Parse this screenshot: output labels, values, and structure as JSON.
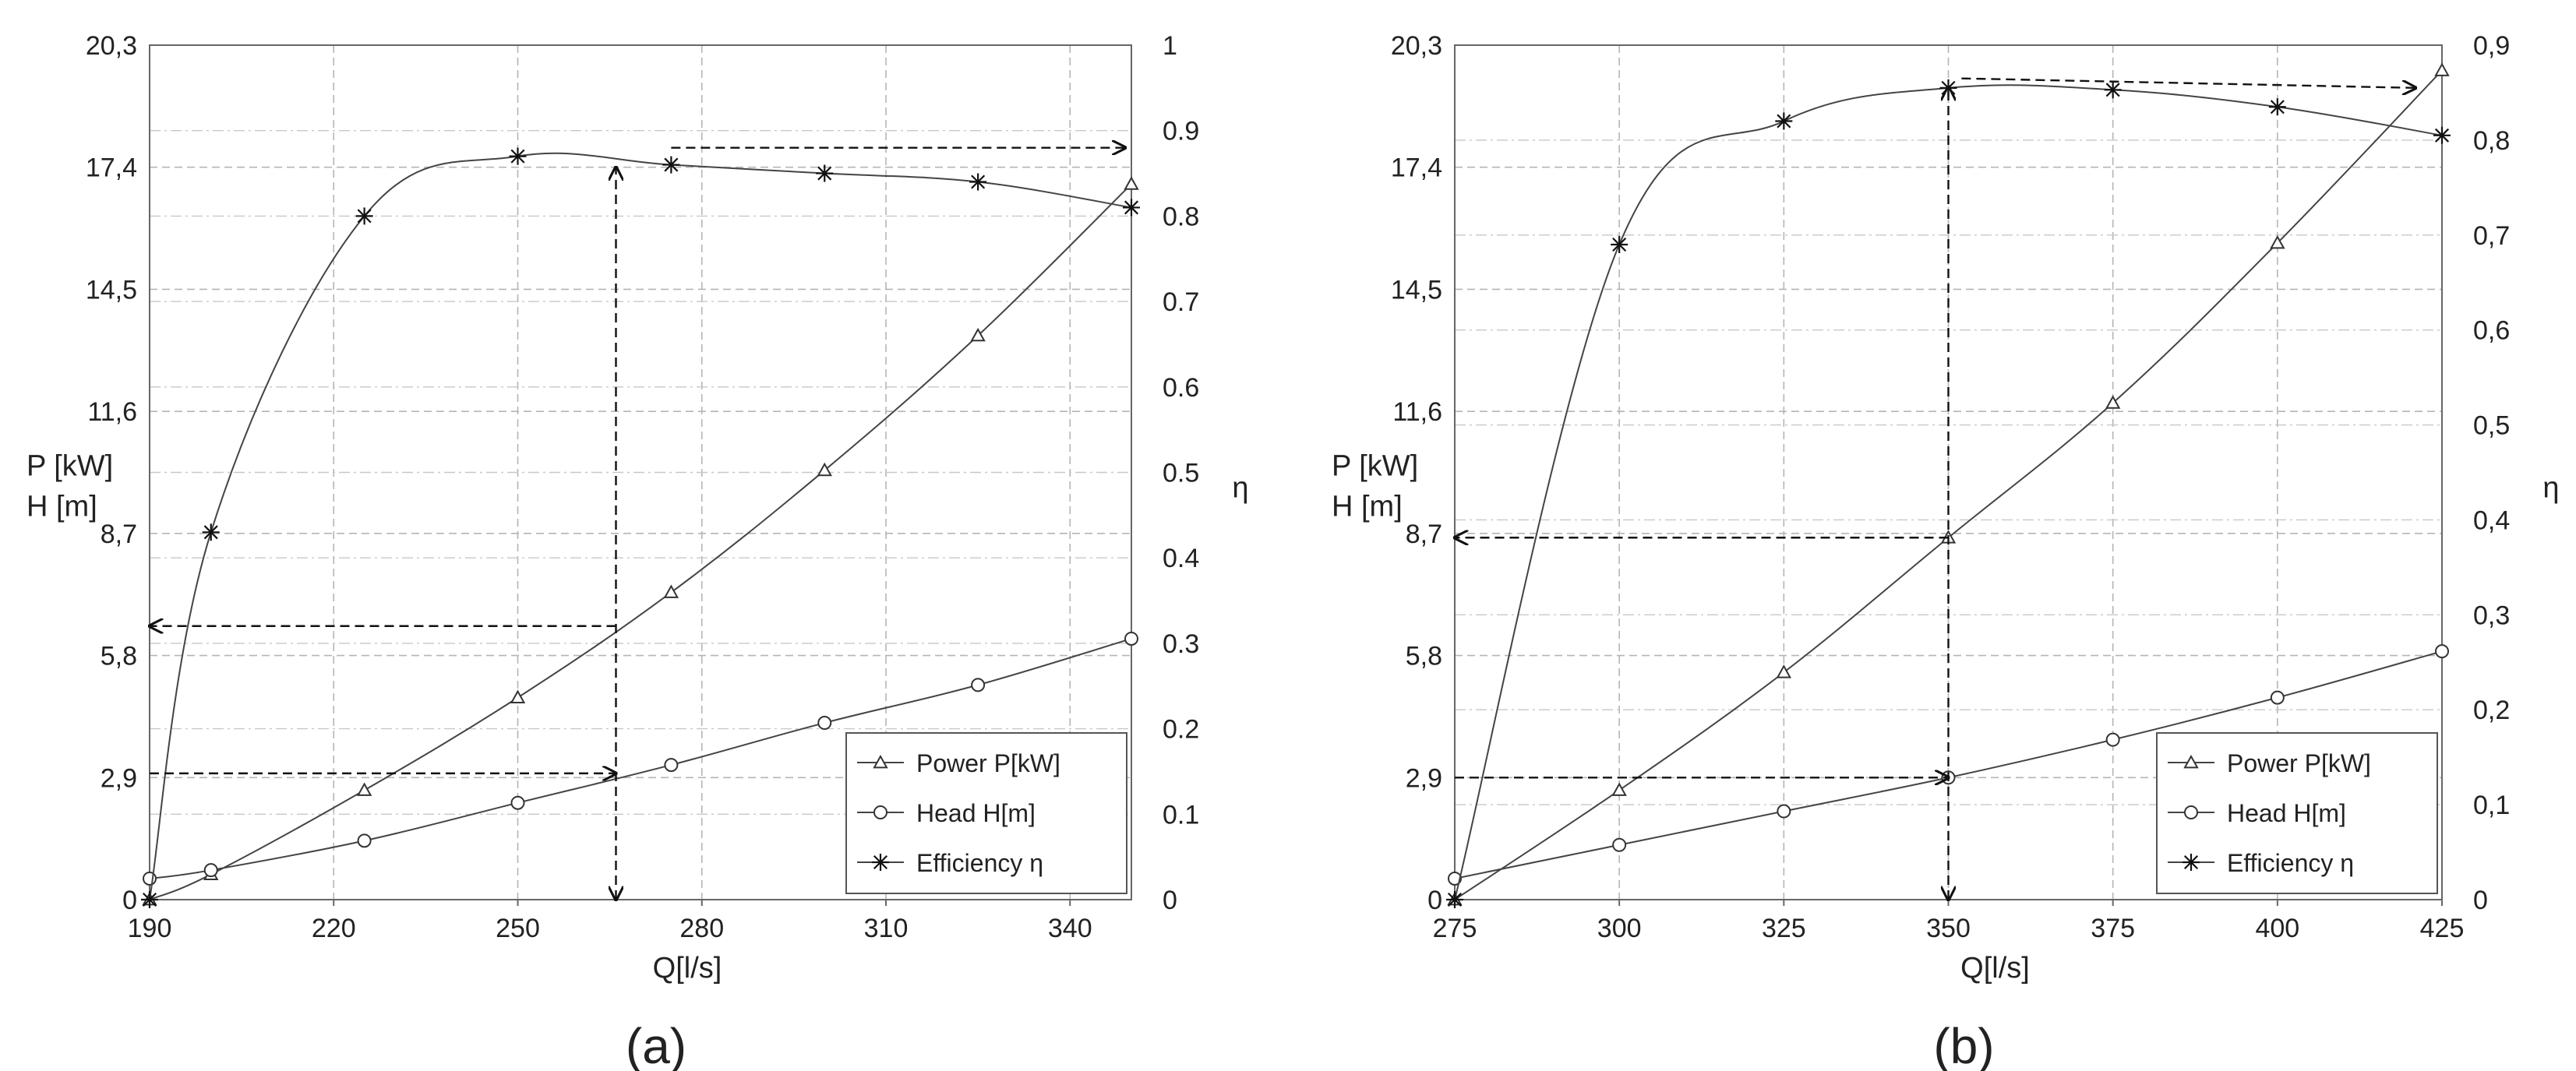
{
  "chart_data": [
    {
      "type": "line",
      "panel_label": "(a)",
      "xlabel": "Q[l/s]",
      "ylabel_lines": [
        "P [kW]",
        "H [m]"
      ],
      "y2label": "η",
      "xlim": [
        190,
        350
      ],
      "ylim": [
        0,
        20.3
      ],
      "y2lim": [
        0,
        1
      ],
      "xticks": [
        190,
        220,
        250,
        280,
        310,
        340
      ],
      "xtick_labels": [
        "190",
        "220",
        "250",
        "280",
        "310",
        "340"
      ],
      "yticks": [
        0,
        2.9,
        5.8,
        8.7,
        11.6,
        14.5,
        17.4,
        20.3
      ],
      "ytick_labels": [
        "0",
        "2,9",
        "5,8",
        "8,7",
        "11,6",
        "14,5",
        "17,4",
        "20,3"
      ],
      "y2ticks": [
        0,
        0.1,
        0.2,
        0.3,
        0.4,
        0.5,
        0.6,
        0.7,
        0.8,
        0.9,
        1
      ],
      "y2tick_labels": [
        "0",
        "0.1",
        "0.2",
        "0.3",
        "0.4",
        "0.5",
        "0.6",
        "0.7",
        "0.8",
        "0.9",
        "1"
      ],
      "grid": true,
      "legend_position": "bottom-right",
      "series": [
        {
          "name": "Power P[kW]",
          "marker": "triangle",
          "axis": "left",
          "x": [
            190,
            200,
            225,
            250,
            275,
            300,
            325,
            350
          ],
          "y": [
            0,
            0.6,
            2.6,
            4.8,
            7.3,
            10.2,
            13.4,
            17.0
          ]
        },
        {
          "name": "Head H[m]",
          "marker": "circle",
          "axis": "left",
          "x": [
            190,
            200,
            225,
            250,
            275,
            300,
            325,
            350
          ],
          "y": [
            0.5,
            0.7,
            1.4,
            2.3,
            3.2,
            4.2,
            5.1,
            6.2
          ]
        },
        {
          "name": "Efficiency η",
          "marker": "asterisk",
          "axis": "right",
          "x": [
            190,
            200,
            225,
            250,
            275,
            300,
            325,
            350
          ],
          "y": [
            0,
            0.43,
            0.8,
            0.87,
            0.86,
            0.85,
            0.84,
            0.81
          ]
        }
      ],
      "annotations": [
        {
          "type": "arrow",
          "from": [
            190,
            3.0
          ],
          "to": [
            266,
            3.0
          ],
          "axis": "left"
        },
        {
          "type": "arrow",
          "from": [
            266,
            6.5
          ],
          "to": [
            190,
            6.5
          ],
          "axis": "left"
        },
        {
          "type": "arrow",
          "from": [
            266,
            0
          ],
          "to": [
            266,
            17.4
          ],
          "axis": "left",
          "double": true
        },
        {
          "type": "arrow",
          "from": [
            275,
            0.88
          ],
          "to": [
            349,
            0.88
          ],
          "axis": "right"
        }
      ]
    },
    {
      "type": "line",
      "panel_label": "(b)",
      "xlabel": "Q[l/s]",
      "ylabel_lines": [
        "P [kW]",
        "H [m]"
      ],
      "y2label": "η",
      "xlim": [
        275,
        425
      ],
      "ylim": [
        0,
        20.3
      ],
      "y2lim": [
        0,
        0.9
      ],
      "xticks": [
        275,
        300,
        325,
        350,
        375,
        400,
        425
      ],
      "xtick_labels": [
        "275",
        "300",
        "325",
        "350",
        "375",
        "400",
        "425"
      ],
      "yticks": [
        0,
        2.9,
        5.8,
        8.7,
        11.6,
        14.5,
        17.4,
        20.3
      ],
      "ytick_labels": [
        "0",
        "2,9",
        "5,8",
        "8,7",
        "11,6",
        "14,5",
        "17,4",
        "20,3"
      ],
      "y2ticks": [
        0,
        0.1,
        0.2,
        0.3,
        0.4,
        0.5,
        0.6,
        0.7,
        0.8,
        0.9
      ],
      "y2tick_labels": [
        "0",
        "0,1",
        "0,2",
        "0,3",
        "0,4",
        "0,5",
        "0,6",
        "0,7",
        "0,8",
        "0,9"
      ],
      "grid": true,
      "legend_position": "bottom-right",
      "series": [
        {
          "name": "Power P[kW]",
          "marker": "triangle",
          "axis": "left",
          "x": [
            275,
            300,
            325,
            350,
            375,
            400,
            425
          ],
          "y": [
            0,
            2.6,
            5.4,
            8.6,
            11.8,
            15.6,
            19.7
          ]
        },
        {
          "name": "Head H[m]",
          "marker": "circle",
          "axis": "left",
          "x": [
            275,
            300,
            325,
            350,
            375,
            400,
            425
          ],
          "y": [
            0.5,
            1.3,
            2.1,
            2.9,
            3.8,
            4.8,
            5.9
          ]
        },
        {
          "name": "Efficiency η",
          "marker": "asterisk",
          "axis": "right",
          "x": [
            275,
            300,
            325,
            350,
            375,
            400,
            425
          ],
          "y": [
            0,
            0.69,
            0.82,
            0.855,
            0.853,
            0.835,
            0.805
          ]
        }
      ],
      "annotations": [
        {
          "type": "arrow",
          "from": [
            275,
            2.9
          ],
          "to": [
            350,
            2.9
          ],
          "axis": "left"
        },
        {
          "type": "arrow",
          "from": [
            350,
            8.6
          ],
          "to": [
            275,
            8.6
          ],
          "axis": "left"
        },
        {
          "type": "arrow",
          "from": [
            350,
            0
          ],
          "to": [
            350,
            19.3
          ],
          "axis": "left",
          "double": true
        },
        {
          "type": "arrow",
          "from": [
            352,
            0.865
          ],
          "to": [
            421,
            0.855
          ],
          "axis": "right"
        }
      ]
    }
  ]
}
